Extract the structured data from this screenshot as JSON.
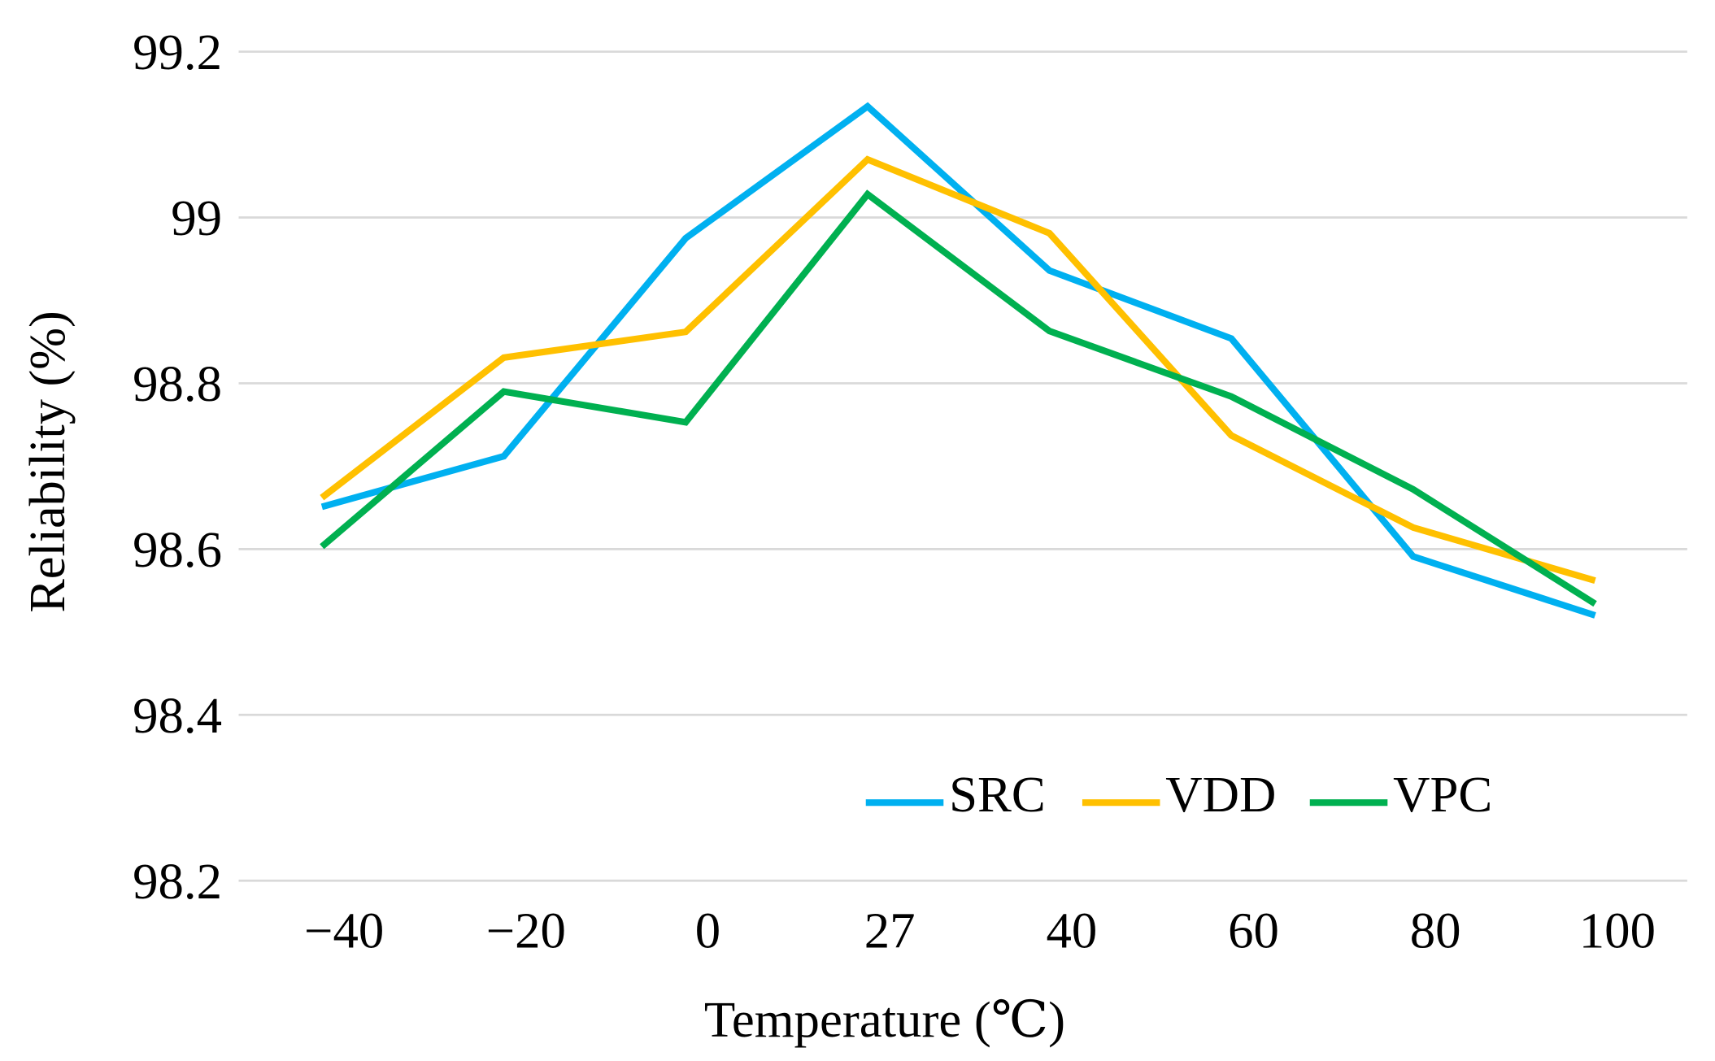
{
  "chart_data": {
    "type": "line",
    "title": "",
    "xlabel": "Temperature (℃)",
    "ylabel": "Reliability (%)",
    "categories": [
      "−40",
      "−20",
      "0",
      "27",
      "40",
      "60",
      "80",
      "100"
    ],
    "ylim": [
      98.2,
      99.2
    ],
    "yticks": [
      "98.2",
      "98.4",
      "98.6",
      "98.8",
      "99",
      "99.2"
    ],
    "ytick_values": [
      98.2,
      98.4,
      98.6,
      98.8,
      99.0,
      99.2
    ],
    "grid": true,
    "legend_position": "bottom-right",
    "series": [
      {
        "name": "SRC",
        "color": "#00b0f0",
        "values": [
          98.651,
          98.712,
          98.975,
          99.134,
          98.936,
          98.854,
          98.591,
          98.52
        ]
      },
      {
        "name": "VDD",
        "color": "#ffc000",
        "values": [
          98.662,
          98.831,
          98.862,
          99.07,
          98.981,
          98.737,
          98.626,
          98.562
        ]
      },
      {
        "name": "VPC",
        "color": "#00b050",
        "values": [
          98.603,
          98.79,
          98.753,
          99.028,
          98.863,
          98.784,
          98.672,
          98.534
        ]
      }
    ]
  }
}
